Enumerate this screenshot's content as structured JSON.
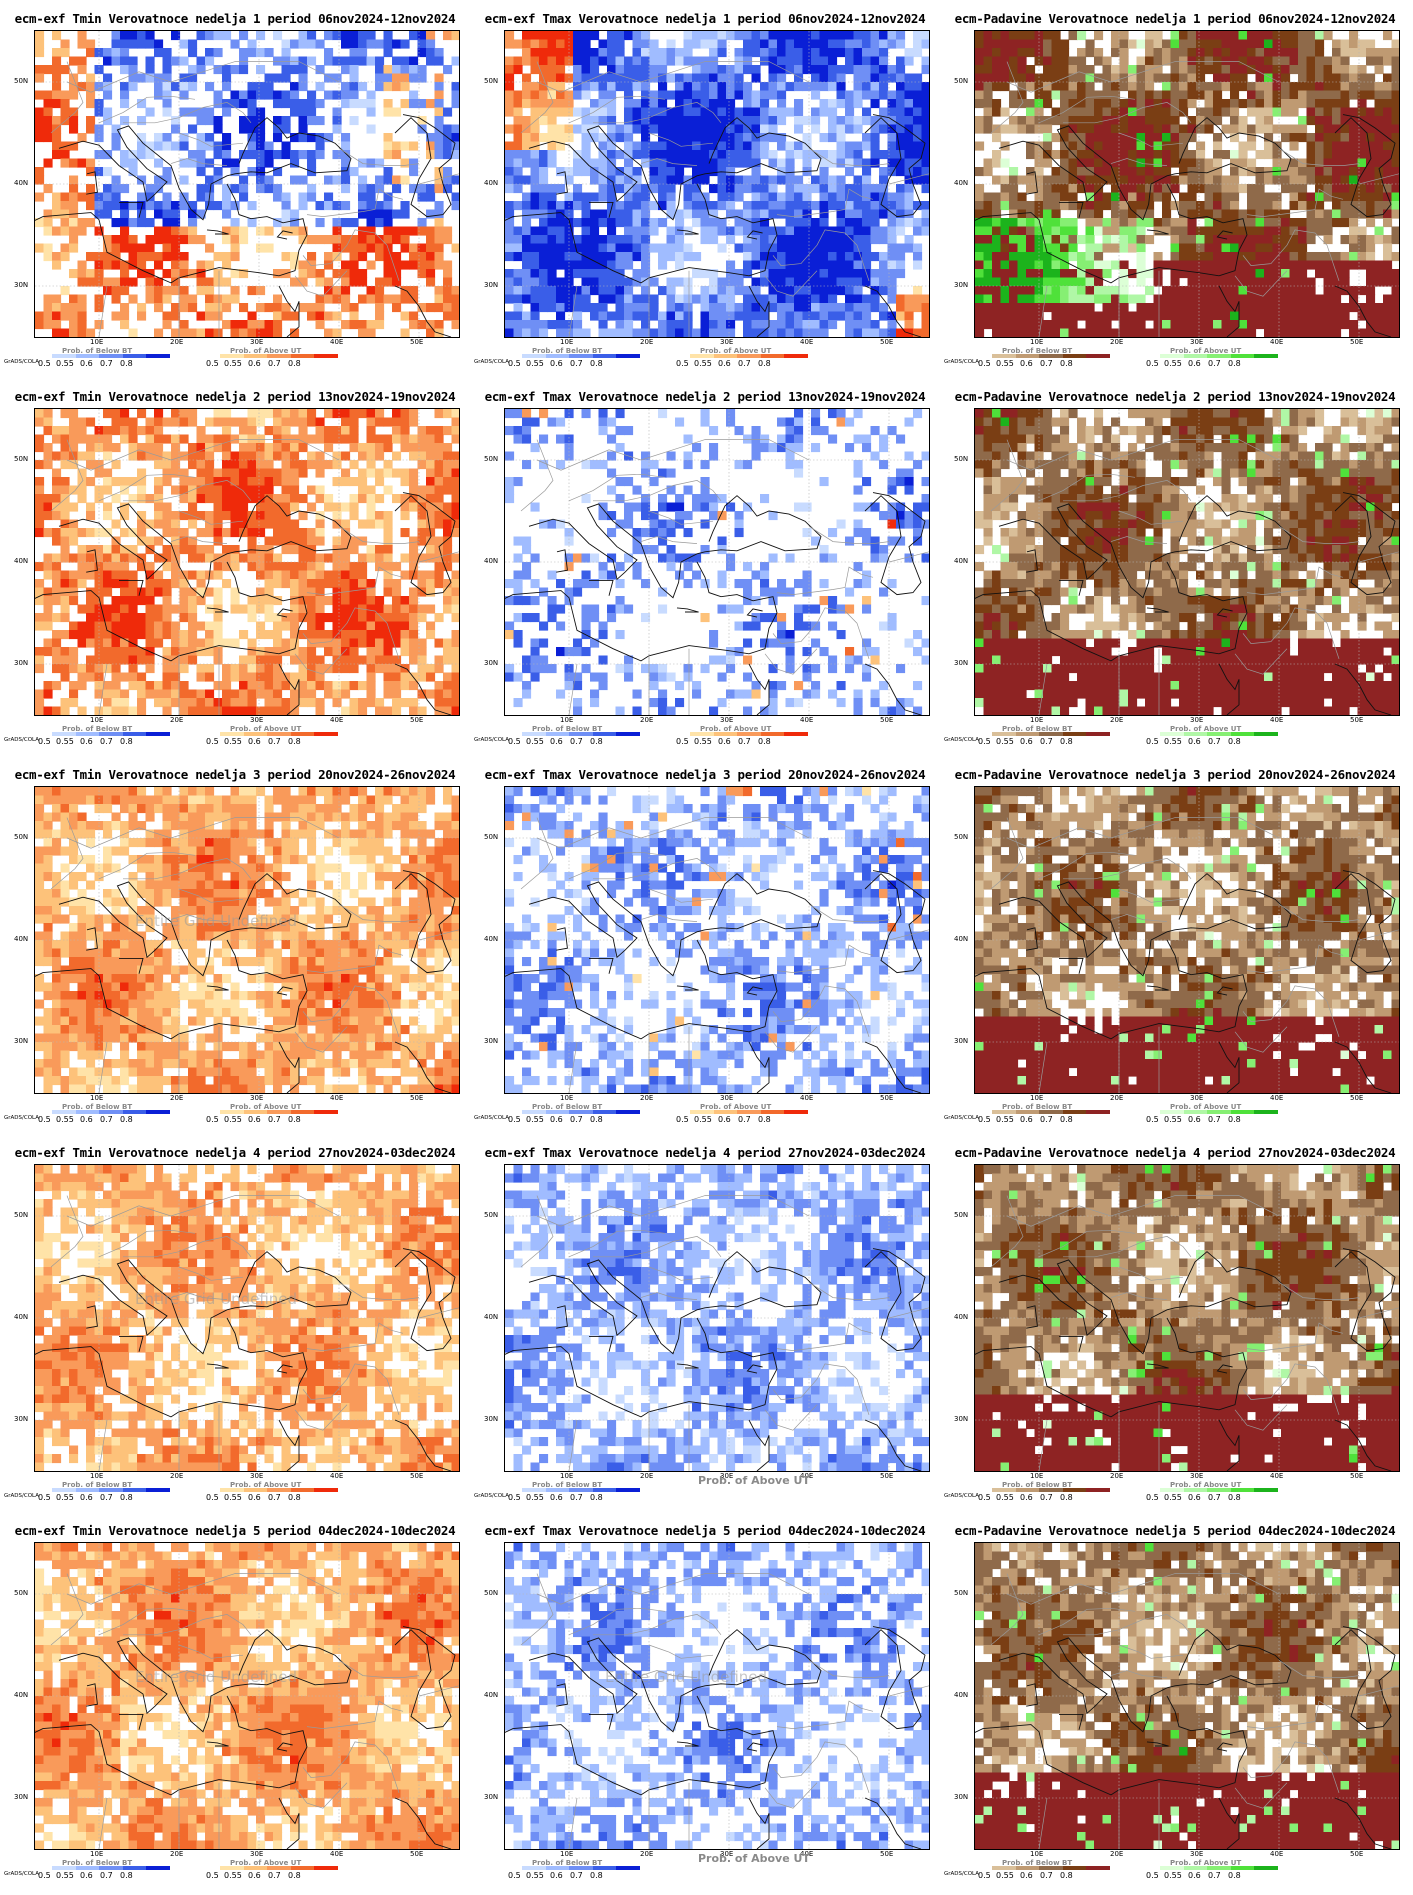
{
  "panels": [
    {
      "title": "ecm-exf Tmin Verovatnoce nedelja 1 period 06nov2024-12nov2024",
      "kind": "tmin",
      "seed": 11,
      "coverage": 0.55,
      "mix": 0.75,
      "legends": [
        "Prob. of Below BT",
        "Prob. of Above UT"
      ],
      "palettes": [
        "blue",
        "red"
      ],
      "grads": "GrADS/COLA",
      "undef": ""
    },
    {
      "title": "ecm-exf Tmax Verovatnoce nedelja 1 period 06nov2024-12nov2024",
      "kind": "tmax",
      "seed": 12,
      "coverage": 0.85,
      "mix": 0.85,
      "legends": [
        "Prob. of Below BT",
        "Prob. of Above UT"
      ],
      "palettes": [
        "blue",
        "red"
      ],
      "grads": "GrADS/COLA",
      "undef": ""
    },
    {
      "title": "ecm-Padavine Verovatnoce nedelja 1 period 06nov2024-12nov2024",
      "kind": "pad",
      "seed": 13,
      "coverage": 0.9,
      "mix": 0.8,
      "legends": [
        "Prob. of Below BT",
        "Prob. of Above UT"
      ],
      "palettes": [
        "brown",
        "green"
      ],
      "grads": "GrADS/COLA",
      "undef": ""
    },
    {
      "title": "ecm-exf Tmin Verovatnoce nedelja 2 period 13nov2024-19nov2024",
      "kind": "tmin",
      "seed": 21,
      "coverage": 0.75,
      "mix": 0.7,
      "legends": [
        "Prob. of Below BT",
        "Prob. of Above UT"
      ],
      "palettes": [
        "blue",
        "red"
      ],
      "grads": "GrADS/COLA",
      "undef": ""
    },
    {
      "title": "ecm-exf Tmax Verovatnoce nedelja 2 period 13nov2024-19nov2024",
      "kind": "tmax",
      "seed": 22,
      "coverage": 0.3,
      "mix": 0.5,
      "legends": [
        "Prob. of Below BT",
        "Prob. of Above UT"
      ],
      "palettes": [
        "blue",
        "red"
      ],
      "grads": "GrADS/COLA",
      "undef": ""
    },
    {
      "title": "ecm-Padavine Verovatnoce nedelja 2 period 13nov2024-19nov2024",
      "kind": "pad",
      "seed": 23,
      "coverage": 0.85,
      "mix": 0.6,
      "legends": [
        "Prob. of Below BT",
        "Prob. of Above UT"
      ],
      "palettes": [
        "brown",
        "green"
      ],
      "grads": "GrADS/COLA",
      "undef": ""
    },
    {
      "title": "ecm-exf Tmin Verovatnoce nedelja 3 period 20nov2024-26nov2024",
      "kind": "tmin",
      "seed": 31,
      "coverage": 0.8,
      "mix": 0.5,
      "legends": [
        "Prob. of Below BT",
        "Prob. of Above UT"
      ],
      "palettes": [
        "blue",
        "red"
      ],
      "grads": "GrADS/COLA",
      "undef": "Entire Grid Undefined"
    },
    {
      "title": "ecm-exf Tmax Verovatnoce nedelja 3 period 20nov2024-26nov2024",
      "kind": "tmax",
      "seed": 32,
      "coverage": 0.5,
      "mix": 0.45,
      "legends": [
        "Prob. of Below BT",
        "Prob. of Above UT"
      ],
      "palettes": [
        "blue",
        "red"
      ],
      "grads": "GrADS/COLA",
      "undef": ""
    },
    {
      "title": "ecm-Padavine Verovatnoce nedelja 3 period 20nov2024-26nov2024",
      "kind": "pad",
      "seed": 33,
      "coverage": 0.8,
      "mix": 0.5,
      "legends": [
        "Prob. of Below BT",
        "Prob. of Above UT"
      ],
      "palettes": [
        "brown",
        "green"
      ],
      "grads": "GrADS/COLA",
      "undef": ""
    },
    {
      "title": "ecm-exf Tmin Verovatnoce nedelja 4 period 27nov2024-03dec2024",
      "kind": "tmin",
      "seed": 41,
      "coverage": 0.75,
      "mix": 0.45,
      "legends": [
        "Prob. of Below BT",
        "Prob. of Above UT"
      ],
      "palettes": [
        "blue",
        "red"
      ],
      "grads": "GrADS/COLA",
      "undef": "Entire Grid Undefined"
    },
    {
      "title": "ecm-exf Tmax Verovatnoce nedelja 4 period 27nov2024-03dec2024",
      "kind": "tmax",
      "seed": 42,
      "coverage": 0.6,
      "mix": 0.4,
      "legends": [
        "Prob. of Below BT"
      ],
      "palettes": [
        "blue"
      ],
      "grads": "GrADS/COLA",
      "undef": "",
      "overlay": "Prob. of Above UT"
    },
    {
      "title": "ecm-Padavine Verovatnoce nedelja 4 period 27nov2024-03dec2024",
      "kind": "pad",
      "seed": 43,
      "coverage": 0.9,
      "mix": 0.55,
      "legends": [
        "Prob. of Below BT",
        "Prob. of Above UT"
      ],
      "palettes": [
        "brown",
        "green"
      ],
      "grads": "GrADS/COLA",
      "undef": ""
    },
    {
      "title": "ecm-exf Tmin Verovatnoce nedelja 5 period 04dec2024-10dec2024",
      "kind": "tmin",
      "seed": 51,
      "coverage": 0.85,
      "mix": 0.5,
      "legends": [
        "Prob. of Below BT",
        "Prob. of Above UT"
      ],
      "palettes": [
        "blue",
        "red"
      ],
      "grads": "GrADS/COLA",
      "undef": "Entire Grid Undefined"
    },
    {
      "title": "ecm-exf Tmax Verovatnoce nedelja 5 period 04dec2024-10dec2024",
      "kind": "tmax",
      "seed": 52,
      "coverage": 0.5,
      "mix": 0.4,
      "legends": [
        "Prob. of Below BT"
      ],
      "palettes": [
        "blue"
      ],
      "grads": "",
      "undef": "Entire Grid Undefined",
      "overlay": "Prob. of Above UT"
    },
    {
      "title": "ecm-Padavine Verovatnoce nedelja 5 period 04dec2024-10dec2024",
      "kind": "pad",
      "seed": 53,
      "coverage": 0.88,
      "mix": 0.5,
      "legends": [
        "Prob. of Below BT",
        "Prob. of Above UT"
      ],
      "palettes": [
        "brown",
        "green"
      ],
      "grads": "GrADS/COLA",
      "undef": ""
    }
  ],
  "axes": {
    "lat_labels": [
      "50N",
      "40N",
      "30N"
    ],
    "lon_labels": [
      "10E",
      "20E",
      "30E",
      "40E",
      "50E"
    ]
  },
  "legend_ticks": [
    "0.5",
    "0.55",
    "0.6",
    "0.7",
    "0.8"
  ],
  "palettes": {
    "blue": [
      "#c8dbff",
      "#a0bcff",
      "#6f8ff5",
      "#3a5ee8",
      "#0a1fd6"
    ],
    "red": [
      "#ffe3a8",
      "#fdc27a",
      "#f99a5a",
      "#f26a2c",
      "#ef2a0a"
    ],
    "brown": [
      "#d9bf99",
      "#bf9a72",
      "#8f6a4a",
      "#7a3e14",
      "#8e2323"
    ],
    "green": [
      "#dcffd6",
      "#b0f7a6",
      "#86ef73",
      "#4fe13a",
      "#1cb31c"
    ]
  }
}
